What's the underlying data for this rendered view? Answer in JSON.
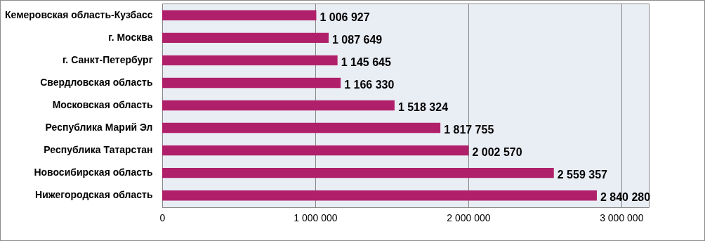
{
  "chart_data": {
    "type": "bar",
    "orientation": "horizontal",
    "categories": [
      "Кемеровская область-Кузбасс",
      "г. Москва",
      "г. Санкт-Петербург",
      "Свердловская область",
      "Московская область",
      "Республика Марий Эл",
      "Республика Татарстан",
      "Новосибирская область",
      "Нижегородская область"
    ],
    "values": [
      1006927,
      1087649,
      1145645,
      1166330,
      1518324,
      1817755,
      2002570,
      2559357,
      2840280
    ],
    "value_labels": [
      "1 006 927",
      "1 087 649",
      "1 145 645",
      "1 166 330",
      "1 518 324",
      "1 817 755",
      "2 002 570",
      "2 559 357",
      "2 840 280"
    ],
    "color": "#b0206a",
    "xlim": [
      0,
      3180000
    ],
    "xticks": [
      0,
      {
        "value": 1000000,
        "label": "1 000 000"
      },
      {
        "value": 2000000,
        "label": "2 000 000"
      },
      {
        "value": 3000000,
        "label": "3 000 000"
      }
    ],
    "grid": "x"
  }
}
